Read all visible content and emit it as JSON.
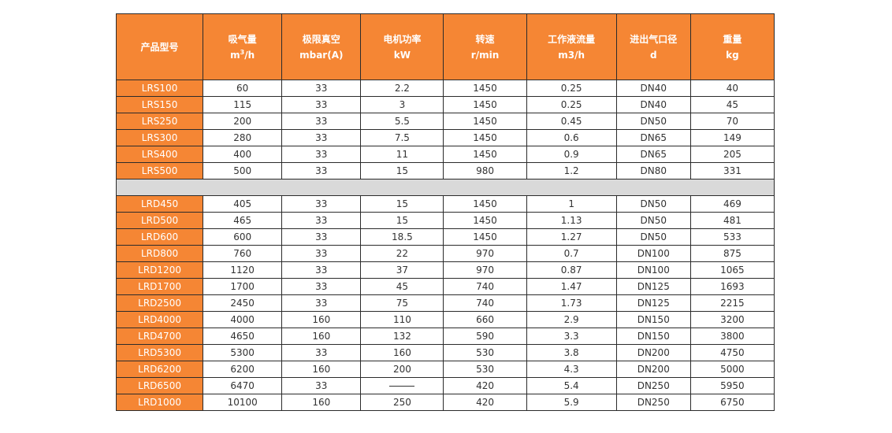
{
  "headers": [
    {
      "line1": "产品型号",
      "line2": ""
    },
    {
      "line1": "吸气量",
      "line2": "m",
      "sup": "3",
      "line2_after": "/h"
    },
    {
      "line1": "极限真空",
      "line2": "mbar(A)"
    },
    {
      "line1": "电机功率",
      "line2": "kW"
    },
    {
      "line1": "转速",
      "line2": "r/min"
    },
    {
      "line1": "工作液流量",
      "line2": "m3/h"
    },
    {
      "line1": "进出气口径",
      "line2": "d"
    },
    {
      "line1": "重量",
      "line2": "kg"
    }
  ],
  "lrs_rows": [
    [
      "LRS100",
      "60",
      "33",
      "2.2",
      "1450",
      "0.25",
      "DN40",
      "40"
    ],
    [
      "LRS150",
      "115",
      "33",
      "3",
      "1450",
      "0.25",
      "DN40",
      "45"
    ],
    [
      "LRS250",
      "200",
      "33",
      "5.5",
      "1450",
      "0.45",
      "DN50",
      "70"
    ],
    [
      "LRS300",
      "280",
      "33",
      "7.5",
      "1450",
      "0.6",
      "DN65",
      "149"
    ],
    [
      "LRS400",
      "400",
      "33",
      "11",
      "1450",
      "0.9",
      "DN65",
      "205"
    ],
    [
      "LRS500",
      "500",
      "33",
      "15",
      "980",
      "1.2",
      "DN80",
      "331"
    ]
  ],
  "lrd_rows": [
    [
      "LRD450",
      "405",
      "33",
      "15",
      "1450",
      "1",
      "DN50",
      "469"
    ],
    [
      "LRD500",
      "465",
      "33",
      "15",
      "1450",
      "1.13",
      "DN50",
      "481"
    ],
    [
      "LRD600",
      "600",
      "33",
      "18.5",
      "1450",
      "1.27",
      "DN50",
      "533"
    ],
    [
      "LRD800",
      "760",
      "33",
      "22",
      "970",
      "0.7",
      "DN100",
      "875"
    ],
    [
      "LRD1200",
      "1120",
      "33",
      "37",
      "970",
      "0.87",
      "DN100",
      "1065"
    ],
    [
      "LRD1700",
      "1700",
      "33",
      "45",
      "740",
      "1.47",
      "DN125",
      "1693"
    ],
    [
      "LRD2500",
      "2450",
      "33",
      "75",
      "740",
      "1.73",
      "DN125",
      "2215"
    ],
    [
      "LRD4000",
      "4000",
      "160",
      "110",
      "660",
      "2.9",
      "DN150",
      "3200"
    ],
    [
      "LRD4700",
      "4650",
      "160",
      "132",
      "590",
      "3.3",
      "DN150",
      "3800"
    ],
    [
      "LRD5300",
      "5300",
      "33",
      "160",
      "530",
      "3.8",
      "DN200",
      "4750"
    ],
    [
      "LRD6200",
      "6200",
      "160",
      "200",
      "530",
      "4.3",
      "DN200",
      "5000"
    ],
    [
      "LRD6500",
      "6470",
      "33",
      "——",
      "420",
      "5.4",
      "DN250",
      "5950"
    ],
    [
      "LRD1000",
      "10100",
      "160",
      "250",
      "420",
      "5.9",
      "DN250",
      "6750"
    ]
  ],
  "colors": {
    "accent_orange": "#f58634",
    "separator_gray": "#d9d9d9",
    "border": "#2b2b2b"
  }
}
